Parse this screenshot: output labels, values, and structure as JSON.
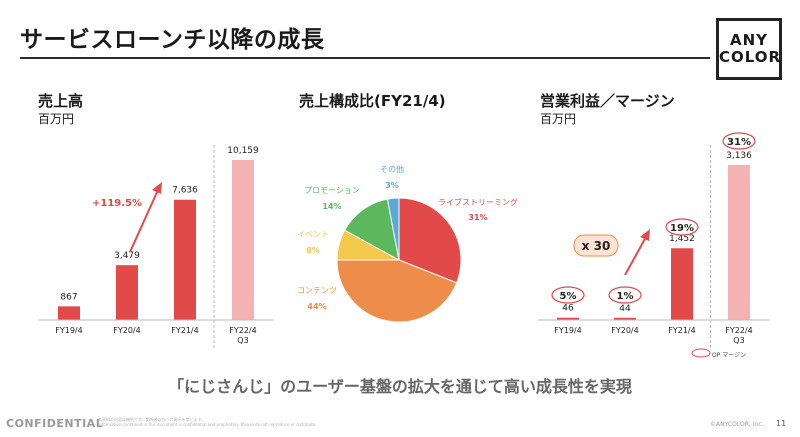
{
  "header": {
    "title": "サービスローンチ以降の成長",
    "logo_line1": "ANY",
    "logo_line2": "COLOR"
  },
  "tagline": "「にじさんじ」のユーザー基盤の拡大を通じて高い成長性を実現",
  "footer": {
    "confidential": "CONFIDENTIAL",
    "note_line1": "本資料の内容は機密です。関係者以外への開示を禁じます。",
    "note_line2": "Information contained in this document is confidential and proprietary. Please do not reproduce or distribute.",
    "copyright": "©ANYCOLOR, Inc.",
    "page": "11"
  },
  "colors": {
    "red": "#e24a4a",
    "pink": "#f5b2b2",
    "orange": "#ee8c4a",
    "yellow": "#f2c94c",
    "green": "#5cb85c",
    "blue": "#5aa9d6",
    "arrow": "#e24a4a"
  },
  "chart_data": [
    {
      "type": "bar",
      "title": "売上高",
      "unit": "百万円",
      "categories": [
        "FY19/4",
        "FY20/4",
        "FY21/4",
        "FY22/4\nQ3"
      ],
      "values": [
        867,
        3479,
        7636,
        10159
      ],
      "value_labels": [
        "867",
        "3,479",
        "7,636",
        "10,159"
      ],
      "ylim": [
        0,
        10159
      ],
      "highlight": "FY22/4 Q3 shown in light pink",
      "annotation": {
        "text": "+119.5%",
        "from": "FY20/4",
        "to": "FY21/4"
      }
    },
    {
      "type": "pie",
      "title": "売上構成比(FY21/4)",
      "slices": [
        {
          "name": "ライブストリーミング",
          "value": 31,
          "label": "31%",
          "color": "#e24a4a"
        },
        {
          "name": "コンテンツ",
          "value": 44,
          "label": "44%",
          "color": "#ee8c4a"
        },
        {
          "name": "イベント",
          "value": 8,
          "label": "8%",
          "color": "#f2c94c"
        },
        {
          "name": "プロモーション",
          "value": 14,
          "label": "14%",
          "color": "#5cb85c"
        },
        {
          "name": "その他",
          "value": 3,
          "label": "3%",
          "color": "#5aa9d6"
        }
      ]
    },
    {
      "type": "bar",
      "title": "営業利益／マージン",
      "unit": "百万円",
      "categories": [
        "FY19/4",
        "FY20/4",
        "FY21/4",
        "FY22/4\nQ3"
      ],
      "values": [
        46,
        44,
        1452,
        3136
      ],
      "value_labels": [
        "46",
        "44",
        "1,452",
        "3,136"
      ],
      "margins": [
        "5%",
        "1%",
        "19%",
        "31%"
      ],
      "ylim": [
        0,
        3136
      ],
      "annotation": {
        "text": "x 30",
        "from": "FY20/4",
        "to": "FY21/4"
      },
      "legend": "OP マージン"
    }
  ]
}
